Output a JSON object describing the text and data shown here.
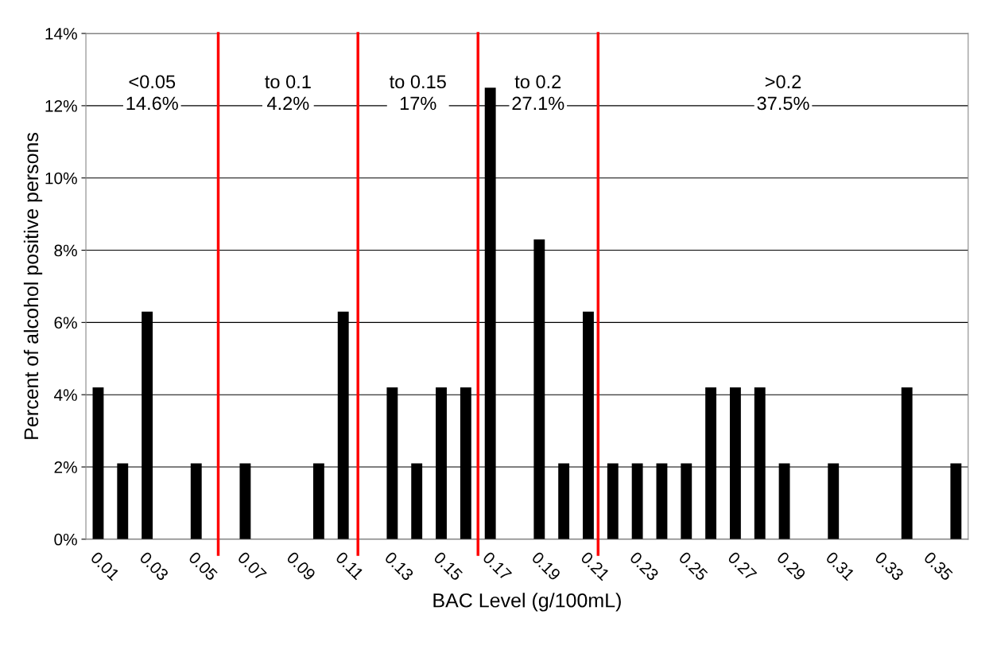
{
  "chart_data": {
    "type": "bar",
    "xlabel": "BAC Level (g/100mL)",
    "ylabel": "Percent of alcohol positive persons",
    "x": [
      0.01,
      0.02,
      0.03,
      0.04,
      0.05,
      0.06,
      0.07,
      0.08,
      0.09,
      0.1,
      0.11,
      0.12,
      0.13,
      0.14,
      0.15,
      0.16,
      0.17,
      0.18,
      0.19,
      0.2,
      0.21,
      0.22,
      0.23,
      0.24,
      0.25,
      0.26,
      0.27,
      0.28,
      0.29,
      0.3,
      0.31,
      0.32,
      0.33,
      0.34,
      0.35,
      0.36
    ],
    "values": [
      4.2,
      2.1,
      6.3,
      0,
      2.1,
      0,
      2.1,
      0,
      0,
      2.1,
      6.3,
      0,
      4.2,
      2.1,
      4.2,
      4.2,
      12.5,
      0,
      8.3,
      2.1,
      6.3,
      2.1,
      2.1,
      2.1,
      2.1,
      4.2,
      4.2,
      4.2,
      2.1,
      0,
      2.1,
      0,
      0,
      4.2,
      0,
      2.1
    ],
    "color": "#000000",
    "xlim": [
      0.005,
      0.365
    ],
    "xticks": [
      0.01,
      0.03,
      0.05,
      0.07,
      0.09,
      0.11,
      0.13,
      0.15,
      0.17,
      0.19,
      0.21,
      0.23,
      0.25,
      0.27,
      0.29,
      0.31,
      0.33,
      0.35
    ],
    "ylim": [
      0,
      14
    ],
    "yticks": [
      {
        "value": 0,
        "label": "0%"
      },
      {
        "value": 2,
        "label": "2%"
      },
      {
        "value": 4,
        "label": "4%"
      },
      {
        "value": 6,
        "label": "6%"
      },
      {
        "value": 8,
        "label": "8%"
      },
      {
        "value": 10,
        "label": "10%"
      },
      {
        "value": 12,
        "label": "12%"
      },
      {
        "value": 14,
        "label": "14%"
      }
    ],
    "grid": "y",
    "ref_lines": [
      {
        "axis": "x",
        "value": 0.059,
        "color": "#ff0000"
      },
      {
        "axis": "x",
        "value": 0.116,
        "color": "#ff0000"
      },
      {
        "axis": "x",
        "value": 0.165,
        "color": "#ff0000"
      },
      {
        "axis": "x",
        "value": 0.214,
        "color": "#ff0000"
      }
    ],
    "annotations": [
      "<0.05\n14.6%",
      "to 0.1\n4.2%",
      "to 0.15\n17%",
      "to 0.2\n27.1%",
      ">0.2\n37.5%"
    ]
  }
}
